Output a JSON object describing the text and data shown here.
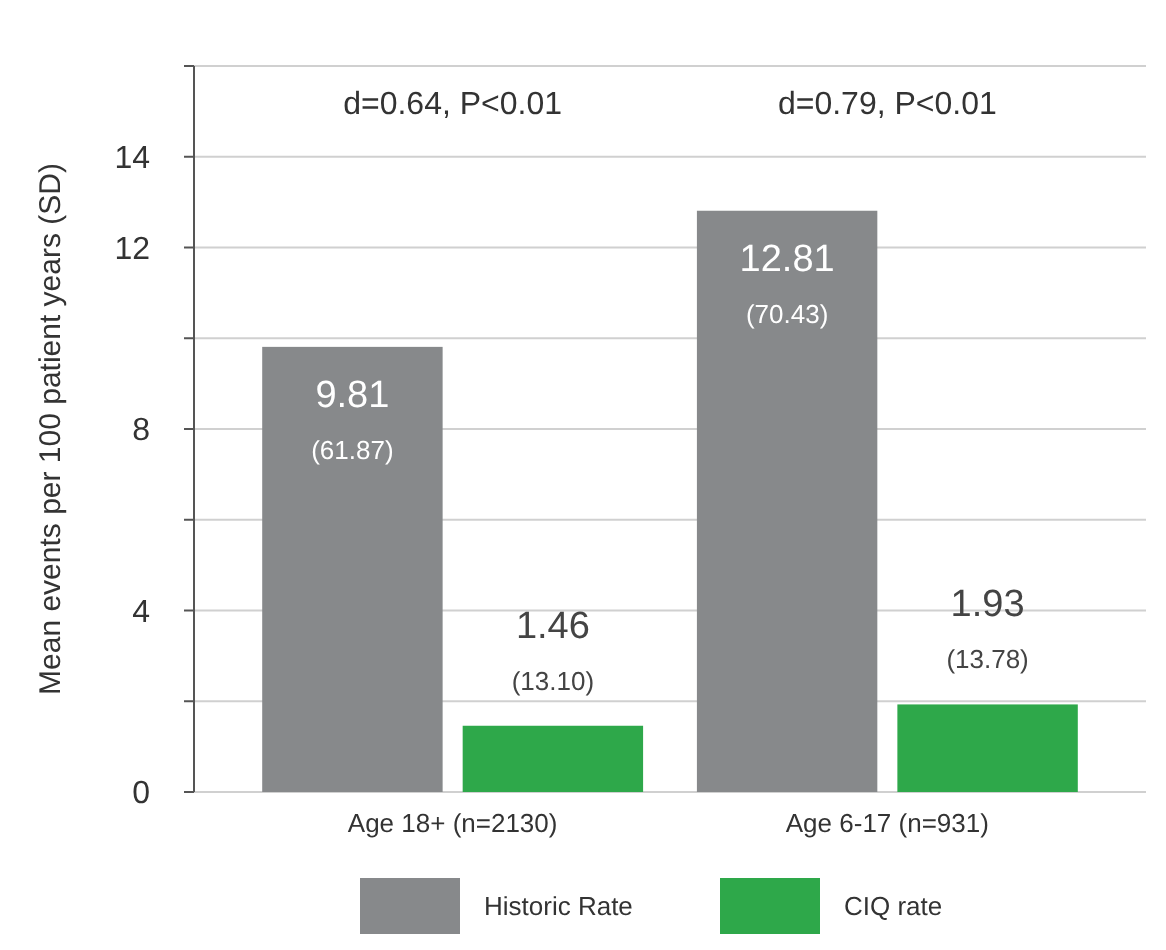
{
  "chart_data": {
    "type": "bar",
    "ylabel": "Mean events per 100 patient years (SD)",
    "categories": [
      "Age 18+ (n=2130)",
      "Age 6-17 (n=931)"
    ],
    "series": [
      {
        "name": "Historic Rate",
        "color": "#87898b",
        "values": [
          9.81,
          12.81
        ],
        "value_labels": [
          "9.81 (61.87)",
          "12.81 (70.43)"
        ]
      },
      {
        "name": "CIQ rate",
        "color": "#2ea84a",
        "values": [
          1.46,
          1.93
        ],
        "value_labels": [
          "1.46 (13.10)",
          "1.93 (13.78)"
        ]
      }
    ],
    "ylim": [
      0,
      16
    ],
    "yticks": [
      0,
      {
        "value": 2,
        "label": null
      },
      4,
      {
        "value": 6,
        "label": null
      },
      8,
      {
        "value": 10,
        "label": null
      },
      12,
      14,
      {
        "value": 16,
        "label": null
      }
    ],
    "grid": "y",
    "legend": "bottom",
    "annotations": [
      "d=0.64, P<0.01",
      "d=0.79, P<0.01"
    ]
  }
}
